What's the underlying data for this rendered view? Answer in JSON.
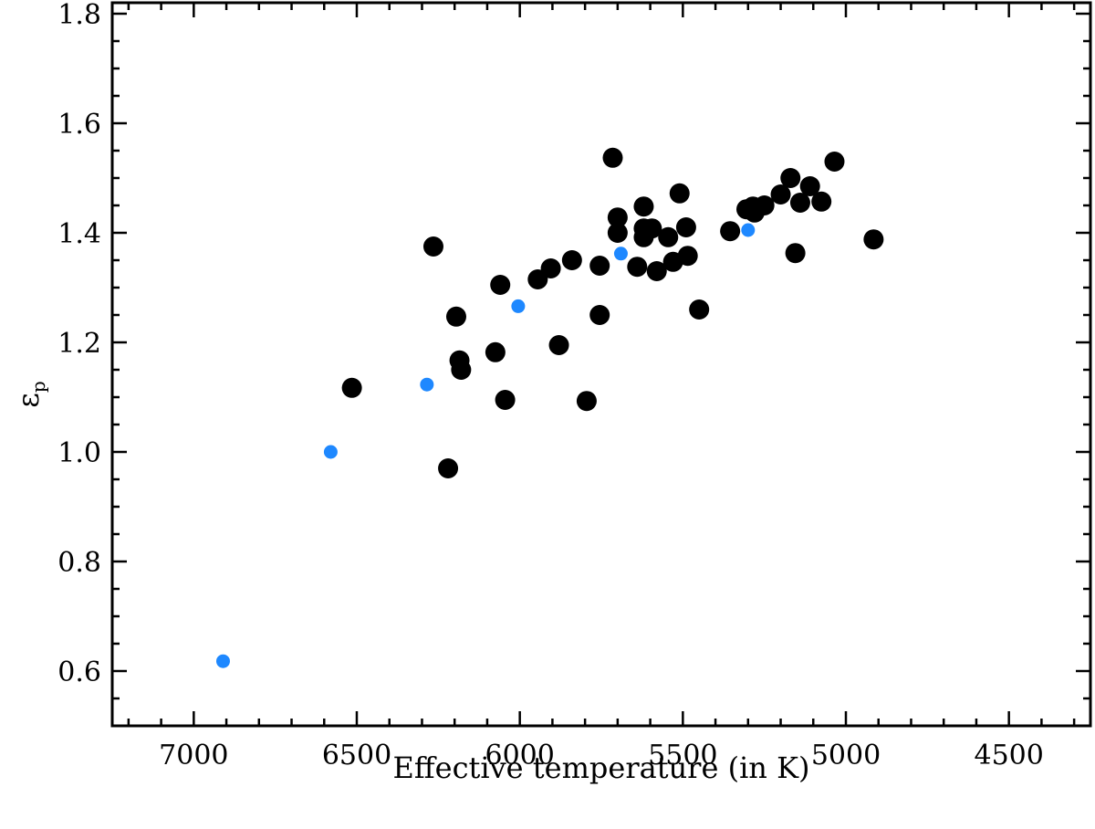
{
  "chart_data": {
    "type": "scatter",
    "xlabel": "Effective temperature (in K)",
    "ylabel": "ε",
    "ylabel_subscript": "p",
    "xlim": [
      7250,
      4250
    ],
    "ylim": [
      0.5,
      1.82
    ],
    "x_reversed": true,
    "x_ticks": [
      7000,
      6500,
      6000,
      5500,
      5000,
      4500
    ],
    "x_tick_labels": [
      "7000",
      "6500",
      "6000",
      "5500",
      "5000",
      "4500"
    ],
    "x_minor_step": 100,
    "y_ticks": [
      0.6,
      0.8,
      1.0,
      1.2,
      1.4,
      1.6,
      1.8
    ],
    "y_tick_labels": [
      "0.6",
      "0.8",
      "1.0",
      "1.2",
      "1.4",
      "1.6",
      "1.8"
    ],
    "y_minor_step": 0.05,
    "grid": false,
    "series": [
      {
        "color": "#000000",
        "marker_size": "large",
        "points": [
          [
            6515,
            1.117
          ],
          [
            6265,
            1.375
          ],
          [
            6220,
            0.97
          ],
          [
            6195,
            1.247
          ],
          [
            6185,
            1.167
          ],
          [
            6180,
            1.15
          ],
          [
            6075,
            1.182
          ],
          [
            6060,
            1.305
          ],
          [
            6045,
            1.095
          ],
          [
            5945,
            1.315
          ],
          [
            5905,
            1.335
          ],
          [
            5880,
            1.195
          ],
          [
            5840,
            1.35
          ],
          [
            5795,
            1.093
          ],
          [
            5755,
            1.34
          ],
          [
            5755,
            1.25
          ],
          [
            5715,
            1.537
          ],
          [
            5700,
            1.428
          ],
          [
            5700,
            1.4
          ],
          [
            5640,
            1.338
          ],
          [
            5620,
            1.448
          ],
          [
            5620,
            1.408
          ],
          [
            5620,
            1.392
          ],
          [
            5595,
            1.408
          ],
          [
            5580,
            1.33
          ],
          [
            5545,
            1.392
          ],
          [
            5530,
            1.347
          ],
          [
            5510,
            1.472
          ],
          [
            5490,
            1.41
          ],
          [
            5485,
            1.358
          ],
          [
            5450,
            1.26
          ],
          [
            5355,
            1.403
          ],
          [
            5305,
            1.443
          ],
          [
            5285,
            1.448
          ],
          [
            5280,
            1.437
          ],
          [
            5250,
            1.45
          ],
          [
            5200,
            1.47
          ],
          [
            5170,
            1.5
          ],
          [
            5155,
            1.363
          ],
          [
            5140,
            1.455
          ],
          [
            5110,
            1.485
          ],
          [
            5075,
            1.457
          ],
          [
            5035,
            1.53
          ],
          [
            4915,
            1.388
          ]
        ]
      },
      {
        "color": "#1e88ff",
        "marker_size": "small",
        "points": [
          [
            6910,
            0.618
          ],
          [
            6580,
            1.0
          ],
          [
            6285,
            1.123
          ],
          [
            6005,
            1.266
          ],
          [
            5690,
            1.362
          ],
          [
            5300,
            1.405
          ]
        ]
      }
    ]
  }
}
